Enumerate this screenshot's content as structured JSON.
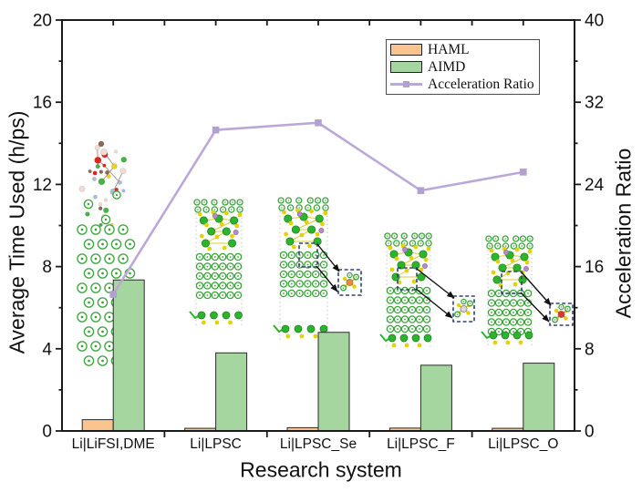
{
  "chart_data": {
    "type": "bar",
    "title": "",
    "categories": [
      "Li|LiFSI,DME",
      "Li|LPSC",
      "Li|LPSC_Se",
      "Li|LPSC_F",
      "Li|LPSC_O"
    ],
    "series": [
      {
        "name": "HAML",
        "type": "bar",
        "axis": "left",
        "values": [
          0.55,
          0.13,
          0.16,
          0.14,
          0.13
        ]
      },
      {
        "name": "AIMD",
        "type": "bar",
        "axis": "left",
        "values": [
          7.35,
          3.8,
          4.8,
          3.2,
          3.3
        ]
      },
      {
        "name": "Acceleration Ratio",
        "type": "line",
        "axis": "right",
        "values": [
          13.3,
          29.3,
          30.0,
          23.4,
          25.2
        ]
      }
    ],
    "left_axis": {
      "label": "Average Time Used (h/ps)",
      "min": 0,
      "max": 20,
      "major_ticks": [
        0,
        4,
        8,
        12,
        16,
        20
      ],
      "minor_ticks": [
        2,
        6,
        10,
        14,
        18
      ]
    },
    "right_axis": {
      "label": "Acceleration Ratio",
      "min": 0,
      "max": 40,
      "major_ticks": [
        0,
        8,
        16,
        24,
        32,
        40
      ],
      "minor_ticks": [
        4,
        12,
        20,
        28,
        36
      ]
    },
    "x_axis": {
      "label": "Research system"
    },
    "legend": {
      "position": "top-right",
      "entries": [
        "HAML",
        "AIMD",
        "Acceleration Ratio"
      ]
    },
    "grid": false
  },
  "colors": {
    "haml_bar": "#fac48e",
    "aimd_bar": "#a5d6a0",
    "ratio_line": "#bca8d8",
    "ratio_marker": "#b3a0d2",
    "bar_border": "#2b2b2b",
    "axis": "#1a1a1a",
    "legend_border": "#4d4d4d",
    "callout_box": "#33406e",
    "molecule_green": "#3aa33a",
    "molecule_green_solid": "#2db42d",
    "molecule_yellow": "#e2d206",
    "molecule_purple": "#b48cc8"
  },
  "decorations": {
    "molecule_insets": [
      {
        "name": "li-lifsi-dme-interface-structure"
      },
      {
        "name": "li-lpsc-interface-structure"
      },
      {
        "name": "li-lpsc-se-interface-structure-with-zoom-callout"
      },
      {
        "name": "li-lpsc-f-interface-structure-with-zoom-callout"
      },
      {
        "name": "li-lpsc-o-interface-structure-with-zoom-callout"
      }
    ]
  }
}
